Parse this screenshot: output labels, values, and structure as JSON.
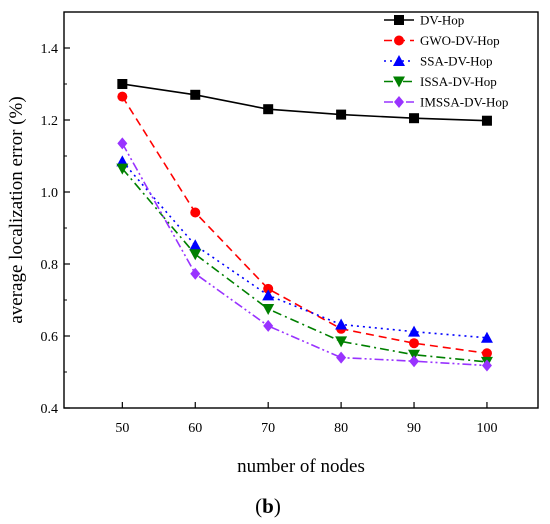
{
  "chart_data": {
    "type": "line",
    "xlabel": "number of nodes",
    "ylabel": "average localization error (%)",
    "panel_label_open": "(",
    "panel_label_letter": "b",
    "panel_label_close": ")",
    "x": [
      50,
      60,
      70,
      80,
      90,
      100
    ],
    "xlim": [
      42,
      107
    ],
    "ylim": [
      0.4,
      1.5
    ],
    "xticks": [
      50,
      60,
      70,
      80,
      90,
      100
    ],
    "yticks": [
      0.4,
      0.6,
      0.8,
      1.0,
      1.2,
      1.4
    ],
    "ytick_labels": [
      "0.4",
      "0.6",
      "0.8",
      "1.0",
      "1.2",
      "1.4"
    ],
    "legend_position": "top-right",
    "grid": false,
    "series": [
      {
        "name": "DV-Hop",
        "values": [
          1.3,
          1.27,
          1.23,
          1.215,
          1.205,
          1.198
        ],
        "color": "#000000",
        "marker": "square",
        "dash": "solid"
      },
      {
        "name": "GWO-DV-Hop",
        "values": [
          1.265,
          0.943,
          0.731,
          0.62,
          0.58,
          0.552
        ],
        "color": "#ff0000",
        "marker": "circle",
        "dash": "dashed"
      },
      {
        "name": "SSA-DV-Hop",
        "values": [
          1.085,
          0.852,
          0.713,
          0.632,
          0.612,
          0.595
        ],
        "color": "#0000ff",
        "marker": "triangle-up",
        "dash": "dotted"
      },
      {
        "name": "ISSA-DV-Hop",
        "values": [
          1.065,
          0.827,
          0.675,
          0.585,
          0.548,
          0.528
        ],
        "color": "#008000",
        "marker": "triangle-down",
        "dash": "dashdot"
      },
      {
        "name": "IMSSA-DV-Hop",
        "values": [
          1.135,
          0.773,
          0.628,
          0.54,
          0.53,
          0.518
        ],
        "color": "#9933ff",
        "marker": "diamond",
        "dash": "dashdotdot"
      }
    ]
  }
}
